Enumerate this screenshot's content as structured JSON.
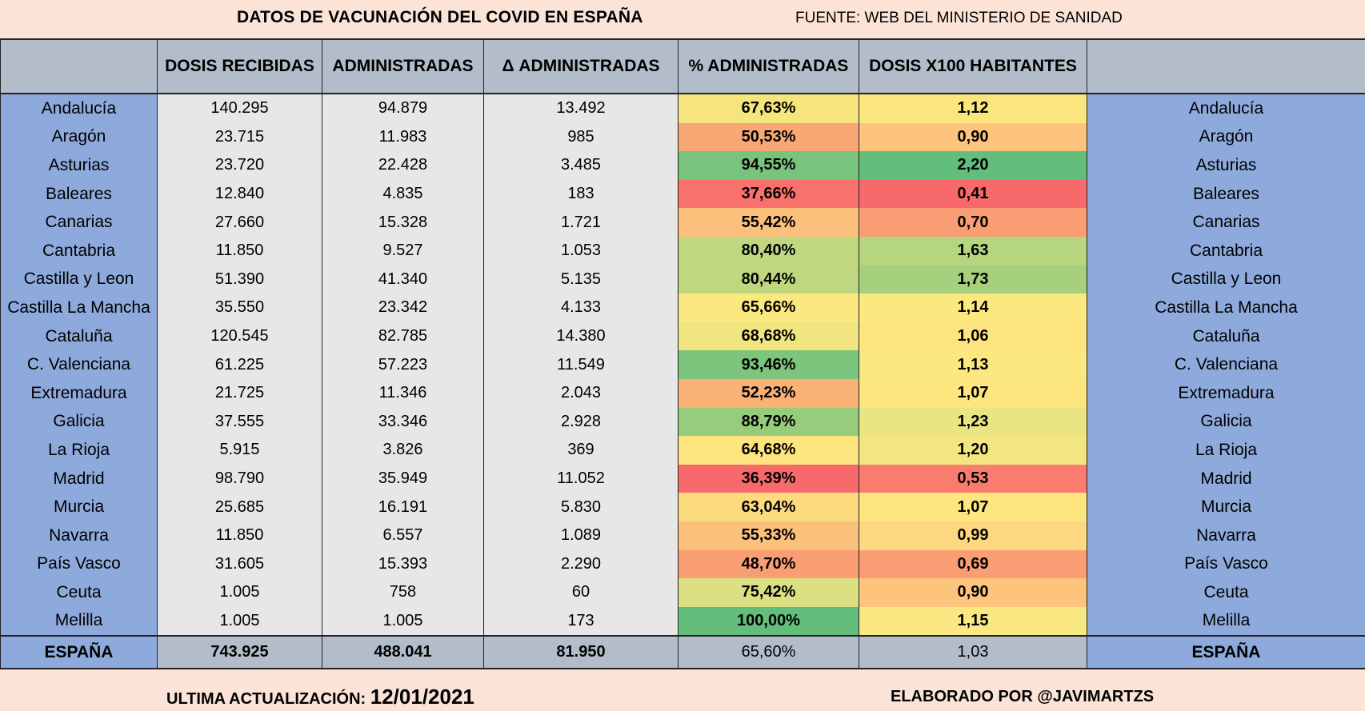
{
  "header": {
    "title": "DATOS DE VACUNACIÓN DEL COVID EN ESPAÑA",
    "source": "FUENTE: WEB DEL MINISTERIO DE SANIDAD"
  },
  "columns": [
    "",
    "DOSIS RECIBIDAS",
    "ADMINISTRADAS",
    "Δ ADMINISTRADAS",
    "%  ADMINISTRADAS",
    "DOSIS X100 HABITANTES",
    ""
  ],
  "rows": [
    {
      "region": "Andalucía",
      "recibidas": "140.295",
      "administradas": "94.879",
      "delta": "13.492",
      "pct": "67,63%",
      "x100": "1,12",
      "pct_color": "#f5e57c",
      "x100_color": "#fbe67d"
    },
    {
      "region": "Aragón",
      "recibidas": "23.715",
      "administradas": "11.983",
      "delta": "985",
      "pct": "50,53%",
      "x100": "0,90",
      "pct_color": "#f9a775",
      "x100_color": "#fdc47d"
    },
    {
      "region": "Asturias",
      "recibidas": "23.720",
      "administradas": "22.428",
      "delta": "3.485",
      "pct": "94,55%",
      "x100": "2,20",
      "pct_color": "#78c47c",
      "x100_color": "#63be7b"
    },
    {
      "region": "Baleares",
      "recibidas": "12.840",
      "administradas": "4.835",
      "delta": "183",
      "pct": "37,66%",
      "x100": "0,41",
      "pct_color": "#f8716c",
      "x100_color": "#f8696b"
    },
    {
      "region": "Canarias",
      "recibidas": "27.660",
      "administradas": "15.328",
      "delta": "1.721",
      "pct": "55,42%",
      "x100": "0,70",
      "pct_color": "#fbc07b",
      "x100_color": "#fa9d75"
    },
    {
      "region": "Cantabria",
      "recibidas": "11.850",
      "administradas": "9.527",
      "delta": "1.053",
      "pct": "80,40%",
      "x100": "1,63",
      "pct_color": "#bfd880",
      "x100_color": "#b5d57f"
    },
    {
      "region": "Castilla y Leon",
      "recibidas": "51.390",
      "administradas": "41.340",
      "delta": "5.135",
      "pct": "80,44%",
      "x100": "1,73",
      "pct_color": "#bfd880",
      "x100_color": "#a6d07e"
    },
    {
      "region": "Castilla La Mancha",
      "recibidas": "35.550",
      "administradas": "23.342",
      "delta": "4.133",
      "pct": "65,66%",
      "x100": "1,14",
      "pct_color": "#fce880",
      "x100_color": "#fbe980"
    },
    {
      "region": "Cataluña",
      "recibidas": "120.545",
      "administradas": "82.785",
      "delta": "14.380",
      "pct": "68,68%",
      "x100": "1,06",
      "pct_color": "#f1e580",
      "x100_color": "#fde480"
    },
    {
      "region": "C. Valenciana",
      "recibidas": "61.225",
      "administradas": "57.223",
      "delta": "11.549",
      "pct": "93,46%",
      "x100": "1,13",
      "pct_color": "#7dc47c",
      "x100_color": "#fbe880"
    },
    {
      "region": "Extremadura",
      "recibidas": "21.725",
      "administradas": "11.346",
      "delta": "2.043",
      "pct": "52,23%",
      "x100": "1,07",
      "pct_color": "#f9b176",
      "x100_color": "#fde580"
    },
    {
      "region": "Galicia",
      "recibidas": "37.555",
      "administradas": "33.346",
      "delta": "2.928",
      "pct": "88,79%",
      "x100": "1,23",
      "pct_color": "#97cc7d",
      "x100_color": "#ebe482"
    },
    {
      "region": "La Rioja",
      "recibidas": "5.915",
      "administradas": "3.826",
      "delta": "369",
      "pct": "64,68%",
      "x100": "1,20",
      "pct_color": "#fde47f",
      "x100_color": "#f3e682"
    },
    {
      "region": "Madrid",
      "recibidas": "98.790",
      "administradas": "35.949",
      "delta": "11.052",
      "pct": "36,39%",
      "x100": "0,53",
      "pct_color": "#f8696b",
      "x100_color": "#f97c6e"
    },
    {
      "region": "Murcia",
      "recibidas": "25.685",
      "administradas": "16.191",
      "delta": "5.830",
      "pct": "63,04%",
      "x100": "1,07",
      "pct_color": "#fcdb7f",
      "x100_color": "#fde580"
    },
    {
      "region": "Navarra",
      "recibidas": "11.850",
      "administradas": "6.557",
      "delta": "1.089",
      "pct": "55,33%",
      "x100": "0,99",
      "pct_color": "#fbc07b",
      "x100_color": "#fdd880"
    },
    {
      "region": "País Vasco",
      "recibidas": "31.605",
      "administradas": "15.393",
      "delta": "2.290",
      "pct": "48,70%",
      "x100": "0,69",
      "pct_color": "#f99e72",
      "x100_color": "#fa9c74"
    },
    {
      "region": "Ceuta",
      "recibidas": "1.005",
      "administradas": "758",
      "delta": "60",
      "pct": "75,42%",
      "x100": "0,90",
      "pct_color": "#dbe082",
      "x100_color": "#fdc47d"
    },
    {
      "region": "Melilla",
      "recibidas": "1.005",
      "administradas": "1.005",
      "delta": "173",
      "pct": "100,00%",
      "x100": "1,15",
      "pct_color": "#63be7b",
      "x100_color": "#f9e881"
    }
  ],
  "total": {
    "region": "ESPAÑA",
    "recibidas": "743.925",
    "administradas": "488.041",
    "delta": "81.950",
    "pct": "65,60%",
    "x100": "1,03"
  },
  "footer": {
    "updated_label": "ULTIMA ACTUALIZACIÓN: ",
    "updated_date": "12/01/2021",
    "author": "ELABORADO POR @JAVIMARTZS"
  }
}
